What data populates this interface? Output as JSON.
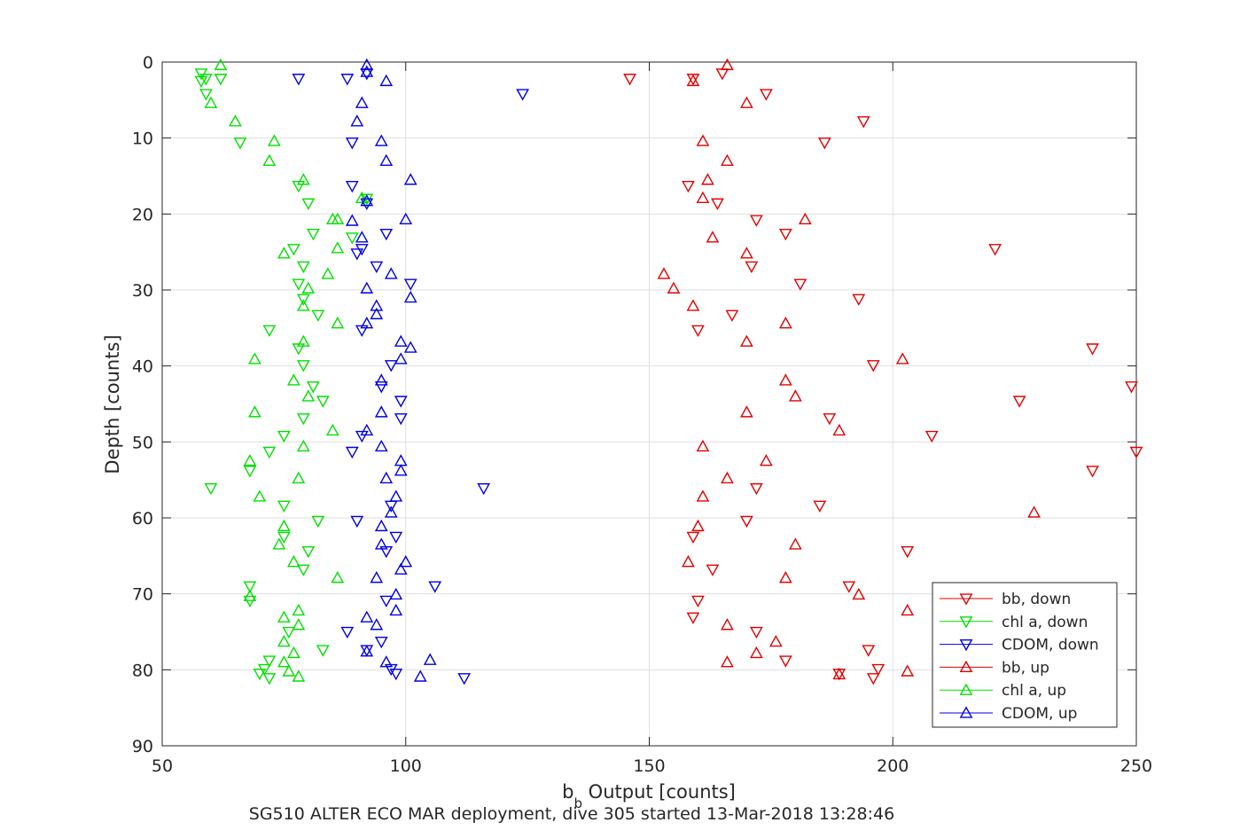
{
  "chart_data": {
    "type": "scatter",
    "title": "",
    "xlabel": "b_b Output [counts]",
    "xlabel_parts": {
      "main": "b",
      "sub": "b",
      "rest": " Output [counts]"
    },
    "ylabel": "Depth [counts]",
    "caption": "SG510 ALTER ECO MAR deployment, dive 305 started 13-Mar-2018 13:28:46",
    "xlim": [
      50,
      250
    ],
    "ylim": [
      0,
      90
    ],
    "y_reversed": true,
    "xticks": [
      50,
      100,
      150,
      200,
      250
    ],
    "yticks": [
      0,
      10,
      20,
      30,
      40,
      50,
      60,
      70,
      80,
      90
    ],
    "grid": true,
    "legend_position": "bottom-right",
    "series": [
      {
        "name": "bb, down",
        "color": "#e00000",
        "marker": "triangle-down",
        "points": [
          [
            146,
            2.2
          ],
          [
            159,
            2.2
          ],
          [
            165,
            1.5
          ],
          [
            174,
            4.2
          ],
          [
            194,
            7.8
          ],
          [
            186,
            10.6
          ],
          [
            158,
            16.3
          ],
          [
            164,
            18.6
          ],
          [
            172,
            20.8
          ],
          [
            178,
            22.6
          ],
          [
            221,
            24.6
          ],
          [
            171,
            26.9
          ],
          [
            181,
            29.2
          ],
          [
            193,
            31.2
          ],
          [
            167,
            33.3
          ],
          [
            160,
            35.3
          ],
          [
            241,
            37.7
          ],
          [
            196,
            39.9
          ],
          [
            249,
            42.7
          ],
          [
            226,
            44.6
          ],
          [
            187,
            46.9
          ],
          [
            208,
            49.2
          ],
          [
            250,
            51.3
          ],
          [
            241,
            53.8
          ],
          [
            172,
            56.1
          ],
          [
            185,
            58.4
          ],
          [
            170,
            60.4
          ],
          [
            159,
            62.5
          ],
          [
            203,
            64.4
          ],
          [
            163,
            66.8
          ],
          [
            191,
            69.0
          ],
          [
            160,
            70.9
          ],
          [
            159,
            73.1
          ],
          [
            172,
            75.0
          ],
          [
            195,
            77.4
          ],
          [
            178,
            78.8
          ],
          [
            197,
            79.9
          ],
          [
            189,
            80.5
          ],
          [
            196,
            81.1
          ]
        ]
      },
      {
        "name": "chl a, down",
        "color": "#00e000",
        "marker": "triangle-down",
        "points": [
          [
            58,
            1.5
          ],
          [
            59,
            2.2
          ],
          [
            58,
            2.5
          ],
          [
            59,
            4.2
          ],
          [
            62,
            2.2
          ],
          [
            66,
            10.6
          ],
          [
            78,
            16.3
          ],
          [
            80,
            18.6
          ],
          [
            81,
            22.6
          ],
          [
            77,
            24.6
          ],
          [
            79,
            26.9
          ],
          [
            78,
            29.2
          ],
          [
            79,
            31.2
          ],
          [
            82,
            33.3
          ],
          [
            72,
            35.3
          ],
          [
            78,
            37.7
          ],
          [
            79,
            39.9
          ],
          [
            81,
            42.7
          ],
          [
            83,
            44.6
          ],
          [
            79,
            46.9
          ],
          [
            75,
            49.2
          ],
          [
            72,
            51.3
          ],
          [
            68,
            53.8
          ],
          [
            60,
            56.1
          ],
          [
            75,
            58.4
          ],
          [
            82,
            60.4
          ],
          [
            75,
            62.5
          ],
          [
            80,
            64.4
          ],
          [
            79,
            66.8
          ],
          [
            68,
            69.0
          ],
          [
            68,
            70.9
          ],
          [
            76,
            75.0
          ],
          [
            83,
            77.4
          ],
          [
            72,
            78.8
          ],
          [
            71,
            79.9
          ],
          [
            70,
            80.5
          ],
          [
            72,
            81.1
          ],
          [
            89,
            23.1
          ],
          [
            92,
            18.0
          ]
        ]
      },
      {
        "name": "CDOM, down",
        "color": "#0000e0",
        "marker": "triangle-down",
        "points": [
          [
            78,
            2.2
          ],
          [
            88,
            2.2
          ],
          [
            92,
            1.5
          ],
          [
            124,
            4.2
          ],
          [
            89,
            10.6
          ],
          [
            89,
            16.3
          ],
          [
            92,
            18.6
          ],
          [
            96,
            22.6
          ],
          [
            91,
            24.6
          ],
          [
            90,
            25.2
          ],
          [
            94,
            26.9
          ],
          [
            101,
            29.2
          ],
          [
            91,
            35.3
          ],
          [
            97,
            39.9
          ],
          [
            95,
            42.7
          ],
          [
            99,
            44.6
          ],
          [
            99,
            46.9
          ],
          [
            91,
            49.2
          ],
          [
            89,
            51.3
          ],
          [
            116,
            56.1
          ],
          [
            97,
            58.4
          ],
          [
            90,
            60.4
          ],
          [
            98,
            62.5
          ],
          [
            96,
            64.4
          ],
          [
            106,
            69.0
          ],
          [
            96,
            70.9
          ],
          [
            88,
            75.0
          ],
          [
            95,
            76.3
          ],
          [
            92,
            77.4
          ],
          [
            97,
            79.9
          ],
          [
            98,
            80.5
          ],
          [
            112,
            81.1
          ]
        ]
      },
      {
        "name": "bb, up",
        "color": "#e00000",
        "marker": "triangle-up",
        "points": [
          [
            166,
            0.4
          ],
          [
            159,
            2.5
          ],
          [
            170,
            5.4
          ],
          [
            161,
            10.4
          ],
          [
            166,
            13.0
          ],
          [
            162,
            15.5
          ],
          [
            161,
            17.9
          ],
          [
            182,
            20.7
          ],
          [
            163,
            23.1
          ],
          [
            170,
            25.2
          ],
          [
            153,
            27.9
          ],
          [
            155,
            29.8
          ],
          [
            159,
            32.1
          ],
          [
            178,
            34.4
          ],
          [
            170,
            36.8
          ],
          [
            202,
            39.1
          ],
          [
            178,
            41.9
          ],
          [
            180,
            44.0
          ],
          [
            170,
            46.1
          ],
          [
            189,
            48.5
          ],
          [
            161,
            50.6
          ],
          [
            174,
            52.5
          ],
          [
            166,
            54.8
          ],
          [
            161,
            57.2
          ],
          [
            229,
            59.3
          ],
          [
            160,
            61.1
          ],
          [
            180,
            63.5
          ],
          [
            158,
            65.8
          ],
          [
            178,
            67.9
          ],
          [
            193,
            70.1
          ],
          [
            203,
            72.2
          ],
          [
            166,
            74.1
          ],
          [
            176,
            76.3
          ],
          [
            172,
            77.8
          ],
          [
            166,
            79.0
          ],
          [
            203,
            80.2
          ],
          [
            189,
            80.6
          ]
        ]
      },
      {
        "name": "chl a, up",
        "color": "#00e000",
        "marker": "triangle-up",
        "points": [
          [
            62,
            0.4
          ],
          [
            60,
            5.4
          ],
          [
            65,
            7.8
          ],
          [
            73,
            10.4
          ],
          [
            72,
            13.0
          ],
          [
            79,
            15.5
          ],
          [
            91,
            17.9
          ],
          [
            85,
            20.7
          ],
          [
            86,
            20.7
          ],
          [
            86,
            24.5
          ],
          [
            75,
            25.2
          ],
          [
            84,
            27.9
          ],
          [
            80,
            29.8
          ],
          [
            79,
            32.1
          ],
          [
            86,
            34.4
          ],
          [
            79,
            36.8
          ],
          [
            69,
            39.1
          ],
          [
            77,
            41.9
          ],
          [
            80,
            44.0
          ],
          [
            69,
            46.1
          ],
          [
            85,
            48.5
          ],
          [
            79,
            50.6
          ],
          [
            68,
            52.5
          ],
          [
            78,
            54.8
          ],
          [
            70,
            57.2
          ],
          [
            75,
            61.1
          ],
          [
            74,
            63.5
          ],
          [
            77,
            65.8
          ],
          [
            86,
            67.9
          ],
          [
            68,
            70.3
          ],
          [
            75,
            73.1
          ],
          [
            78,
            72.2
          ],
          [
            78,
            74.1
          ],
          [
            75,
            76.3
          ],
          [
            77,
            77.8
          ],
          [
            75,
            79.0
          ],
          [
            76,
            80.2
          ],
          [
            78,
            80.9
          ]
        ]
      },
      {
        "name": "CDOM, up",
        "color": "#0000e0",
        "marker": "triangle-up",
        "points": [
          [
            92,
            0.4
          ],
          [
            92,
            1.3
          ],
          [
            96,
            2.5
          ],
          [
            91,
            5.4
          ],
          [
            90,
            7.8
          ],
          [
            95,
            10.4
          ],
          [
            96,
            13.0
          ],
          [
            101,
            15.5
          ],
          [
            92,
            18.3
          ],
          [
            100,
            20.7
          ],
          [
            89,
            20.9
          ],
          [
            91,
            23.1
          ],
          [
            97,
            27.9
          ],
          [
            92,
            29.8
          ],
          [
            101,
            31.0
          ],
          [
            94,
            32.1
          ],
          [
            94,
            33.2
          ],
          [
            92,
            34.4
          ],
          [
            99,
            36.8
          ],
          [
            101,
            37.6
          ],
          [
            99,
            39.1
          ],
          [
            95,
            41.9
          ],
          [
            95,
            46.1
          ],
          [
            92,
            48.5
          ],
          [
            95,
            50.6
          ],
          [
            99,
            52.5
          ],
          [
            99,
            53.8
          ],
          [
            96,
            54.8
          ],
          [
            98,
            57.2
          ],
          [
            97,
            59.3
          ],
          [
            95,
            61.1
          ],
          [
            95,
            63.5
          ],
          [
            100,
            65.8
          ],
          [
            99,
            66.8
          ],
          [
            94,
            67.9
          ],
          [
            98,
            70.1
          ],
          [
            98,
            72.2
          ],
          [
            92,
            73.1
          ],
          [
            94,
            74.1
          ],
          [
            92,
            77.6
          ],
          [
            105,
            78.7
          ],
          [
            96,
            79.0
          ],
          [
            103,
            80.9
          ]
        ]
      }
    ]
  }
}
